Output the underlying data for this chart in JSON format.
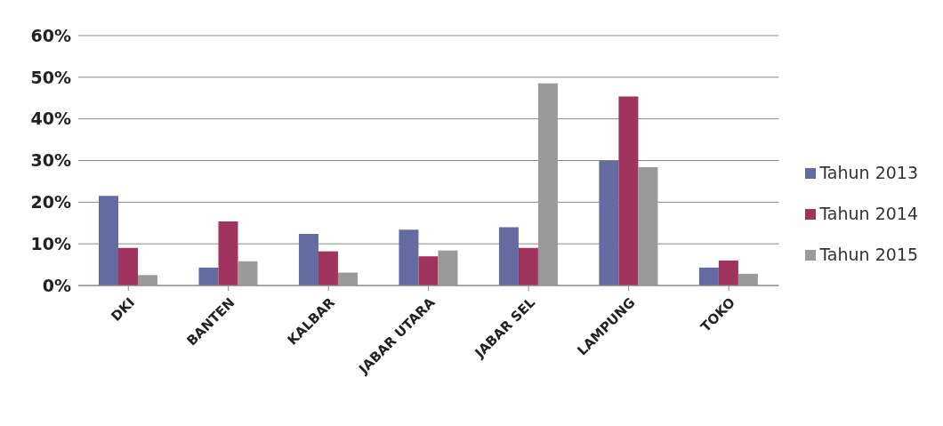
{
  "chart_data": {
    "type": "bar",
    "categories": [
      "DKI",
      "BANTEN",
      "KALBAR",
      "JABAR UTARA",
      "JABAR SEL",
      "LAMPUNG",
      "TOKO"
    ],
    "series": [
      {
        "name": "Tahun 2013",
        "color": "#646ba0",
        "values": [
          21.5,
          4.3,
          12.4,
          13.4,
          14,
          30,
          4.3
        ]
      },
      {
        "name": "Tahun 2014",
        "color": "#a0345e",
        "values": [
          9,
          15.4,
          8.2,
          7,
          9,
          45.4,
          6
        ]
      },
      {
        "name": "Tahun 2015",
        "color": "#9a9a9a",
        "values": [
          2.5,
          5.8,
          3.1,
          8.4,
          48.5,
          28.4,
          2.8
        ]
      }
    ],
    "ylim": [
      0,
      60
    ],
    "yticks": [
      {
        "value": 0,
        "label": "0%"
      },
      {
        "value": 10,
        "label": "10%"
      },
      {
        "value": 20,
        "label": "20%"
      },
      {
        "value": 30,
        "label": "30%"
      },
      {
        "value": 40,
        "label": "40%"
      },
      {
        "value": 50,
        "label": "50%"
      },
      {
        "value": 60,
        "label": "60%"
      }
    ],
    "grid": "y",
    "legend": "right"
  }
}
